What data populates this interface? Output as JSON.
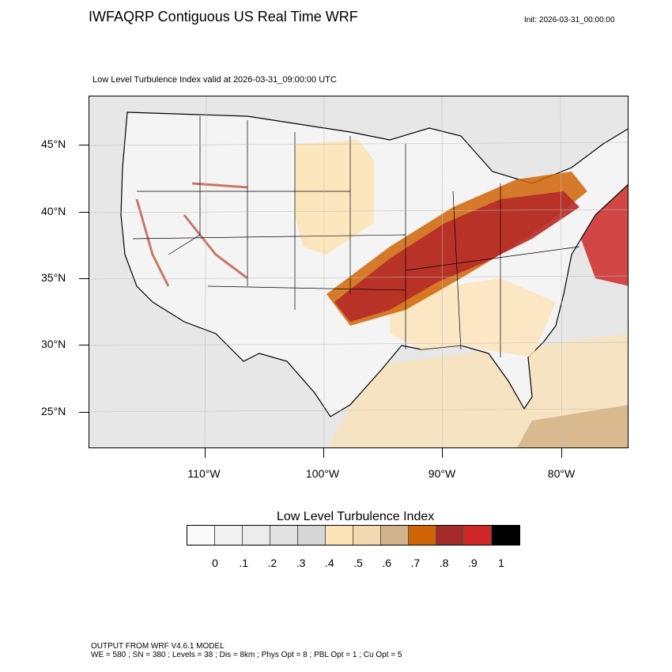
{
  "title": "IWFAQRP Contiguous US Real Time WRF",
  "init": "Init: 2026-03-31_00:00:00",
  "subtitle": "Low Level Turbulence Index valid at 2026-03-31_09:00:00 UTC",
  "map": {
    "lat_labels": [
      "45°N",
      "40°N",
      "35°N",
      "30°N",
      "25°N"
    ],
    "lon_labels": [
      "110°W",
      "100°W",
      "90°W",
      "80°W"
    ]
  },
  "colorbar": {
    "title": "Low Level Turbulence Index",
    "colors": [
      "#fafafa",
      "#f3f3f3",
      "#ececec",
      "#e2e2e2",
      "#d6d6d6",
      "#fde4b8",
      "#f2d9ae",
      "#d2b48c",
      "#cf6406",
      "#a52a2a",
      "#d02626",
      "#000000"
    ],
    "labels": [
      "0",
      ".1",
      ".2",
      ".3",
      ".4",
      ".5",
      ".6",
      ".7",
      ".8",
      ".9",
      "1"
    ]
  },
  "footer": {
    "line1": "OUTPUT FROM WRF V4.6.1 MODEL",
    "line2": "WE = 580 ; SN = 380 ; Levels = 38 ; Dis = 8km ; Phys Opt = 8 ; PBL Opt = 1 ; Cu Opt = 5"
  }
}
